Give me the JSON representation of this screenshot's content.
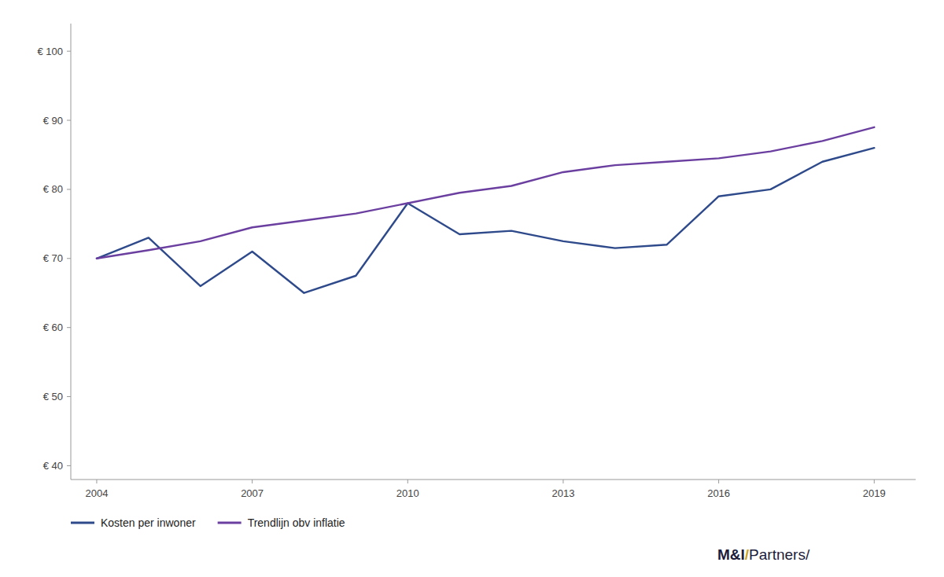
{
  "chart_data": {
    "type": "line",
    "x": [
      2004,
      2005,
      2006,
      2007,
      2008,
      2009,
      2010,
      2011,
      2012,
      2013,
      2014,
      2015,
      2016,
      2017,
      2018,
      2019
    ],
    "series": [
      {
        "name": "Kosten per inwoner",
        "color": "#2E4A8B",
        "values": [
          70,
          73,
          66,
          71,
          65,
          67.5,
          78,
          73.5,
          74,
          72.5,
          71.5,
          72,
          79,
          80,
          84,
          86
        ]
      },
      {
        "name": "Trendlijn obv inflatie",
        "color": "#6B3FA0",
        "values": [
          70,
          71.2,
          72.5,
          74.5,
          75.5,
          76.5,
          78.0,
          79.5,
          80.5,
          82.5,
          83.5,
          84.0,
          84.5,
          85.5,
          87.0,
          89
        ]
      }
    ],
    "xlim": [
      2003.5,
      2019.8
    ],
    "ylim": [
      38,
      104
    ],
    "xticks": [
      2004,
      2007,
      2010,
      2013,
      2016,
      2019
    ],
    "yticks": [
      {
        "value": 40,
        "label": "€ 40"
      },
      {
        "value": 50,
        "label": "€ 50"
      },
      {
        "value": 60,
        "label": "€ 60"
      },
      {
        "value": 70,
        "label": "€ 70"
      },
      {
        "value": 80,
        "label": "€ 80"
      },
      {
        "value": 90,
        "label": "€ 90"
      },
      {
        "value": 100,
        "label": "€ 100"
      }
    ],
    "grid": false,
    "legend": "lower left",
    "annotations": [
      {
        "text": "M&I",
        "color": "#1C1C3A"
      },
      {
        "text": "/",
        "color": "#C9A227"
      },
      {
        "text": "Partners/",
        "color": "#1C1C3A"
      }
    ]
  }
}
